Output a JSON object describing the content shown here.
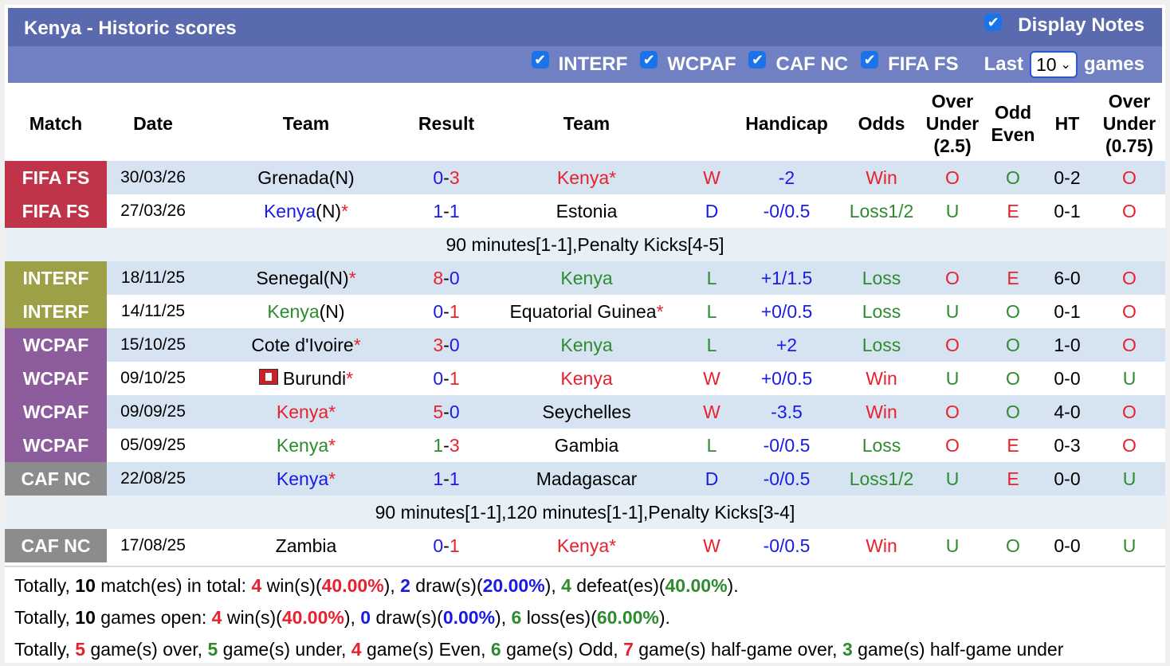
{
  "title": "Kenya - Historic scores",
  "display_notes": "Display Notes",
  "filters": [
    "INTERF",
    "WCPAF",
    "CAF NC",
    "FIFA FS"
  ],
  "last_label": "Last",
  "last_value": "10",
  "games_label": "games",
  "headers": {
    "match": "Match",
    "date": "Date",
    "team1": "Team",
    "result": "Result",
    "team2": "Team",
    "handicap": "Handicap",
    "odds": "Odds",
    "ou1": [
      "Over",
      "Under",
      "(2.5)"
    ],
    "oddeven": [
      "Odd",
      "Even"
    ],
    "ht": "HT",
    "ou2": [
      "Over",
      "Under",
      "(0.75)"
    ]
  },
  "rows": [
    {
      "match": "FIFA FS",
      "date": "30/03/26",
      "team1": "Grenada(N)",
      "result": "0-3",
      "team2": "Kenya",
      "wdl": "W",
      "handicap": "-2",
      "odds": "Win",
      "ou": "O",
      "oe": "O",
      "ht": "0-2",
      "ou2": "O"
    },
    {
      "match": "FIFA FS",
      "date": "27/03/26",
      "team1": "Kenya",
      "result": "1-1",
      "team2": "Estonia",
      "wdl": "D",
      "handicap": "-0/0.5",
      "odds": "Loss1/2",
      "ou": "U",
      "oe": "E",
      "ht": "0-1",
      "ou2": "O"
    },
    {
      "note": "90 minutes[1-1],Penalty Kicks[4-5]"
    },
    {
      "match": "INTERF",
      "date": "18/11/25",
      "team1": "Senegal(N)",
      "result": "8-0",
      "team2": "Kenya",
      "wdl": "L",
      "handicap": "+1/1.5",
      "odds": "Loss",
      "ou": "O",
      "oe": "E",
      "ht": "6-0",
      "ou2": "O"
    },
    {
      "match": "INTERF",
      "date": "14/11/25",
      "team1": "Kenya",
      "result": "0-1",
      "team2": "Equatorial Guinea",
      "wdl": "L",
      "handicap": "+0/0.5",
      "odds": "Loss",
      "ou": "U",
      "oe": "O",
      "ht": "0-1",
      "ou2": "O"
    },
    {
      "match": "WCPAF",
      "date": "15/10/25",
      "team1": "Cote d'Ivoire",
      "result": "3-0",
      "team2": "Kenya",
      "wdl": "L",
      "handicap": "+2",
      "odds": "Loss",
      "ou": "O",
      "oe": "O",
      "ht": "1-0",
      "ou2": "O"
    },
    {
      "match": "WCPAF",
      "date": "09/10/25",
      "team1": "Burundi",
      "result": "0-1",
      "team2": "Kenya",
      "wdl": "W",
      "handicap": "+0/0.5",
      "odds": "Win",
      "ou": "U",
      "oe": "O",
      "ht": "0-0",
      "ou2": "U"
    },
    {
      "match": "WCPAF",
      "date": "09/09/25",
      "team1": "Kenya",
      "result": "5-0",
      "team2": "Seychelles",
      "wdl": "W",
      "handicap": "-3.5",
      "odds": "Win",
      "ou": "O",
      "oe": "O",
      "ht": "4-0",
      "ou2": "O"
    },
    {
      "match": "WCPAF",
      "date": "05/09/25",
      "team1": "Kenya",
      "result": "1-3",
      "team2": "Gambia",
      "wdl": "L",
      "handicap": "-0/0.5",
      "odds": "Loss",
      "ou": "O",
      "oe": "E",
      "ht": "0-3",
      "ou2": "O"
    },
    {
      "match": "CAF NC",
      "date": "22/08/25",
      "team1": "Kenya",
      "result": "1-1",
      "team2": "Madagascar",
      "wdl": "D",
      "handicap": "-0/0.5",
      "odds": "Loss1/2",
      "ou": "U",
      "oe": "E",
      "ht": "0-0",
      "ou2": "U"
    },
    {
      "note": "90 minutes[1-1],120 minutes[1-1],Penalty Kicks[3-4]"
    },
    {
      "match": "CAF NC",
      "date": "17/08/25",
      "team1": "Zambia",
      "result": "0-1",
      "team2": "Kenya",
      "wdl": "W",
      "handicap": "-0/0.5",
      "odds": "Win",
      "ou": "U",
      "oe": "O",
      "ht": "0-0",
      "ou2": "U"
    }
  ],
  "totals": {
    "line1": {
      "t1": "Totally,",
      "n": "10",
      "t2": "match(es) in total:",
      "w": "4",
      "wt": "win(s)(",
      "wp": "40.00%",
      "wc": "),",
      "d": "2",
      "dt": "draw(s)(",
      "dp": "20.00%",
      "dc": "),",
      "l": "4",
      "lt": "defeat(es)(",
      "lp": "40.00%",
      "lc": ")."
    },
    "line2": {
      "t1": "Totally,",
      "n": "10",
      "t2": "games open:",
      "w": "4",
      "wt": "win(s)(",
      "wp": "40.00%",
      "wc": "),",
      "d": "0",
      "dt": "draw(s)(",
      "dp": "0.00%",
      "dc": "),",
      "l": "6",
      "lt": "loss(es)(",
      "lp": "60.00%",
      "lc": ")."
    },
    "line3": {
      "t1": "Totally,",
      "over": "5",
      "t2": "game(s) over,",
      "under": "5",
      "t3": "game(s) under,",
      "even": "4",
      "t4": "game(s) Even,",
      "odd": "6",
      "t5": "game(s) Odd,",
      "hgo": "7",
      "t6": "game(s) half-game over,",
      "hgu": "3",
      "t7": "game(s) half-game under"
    }
  },
  "colors": {
    "title_bar": "#5a6aae",
    "filter_bar": "#7080c2",
    "fifa": "#c0344a",
    "interf": "#9da047",
    "wcpaf": "#8d5c9c",
    "caf": "#8c8c8c",
    "red": "#e8212f",
    "blue": "#1a1ae6",
    "green": "#2e8b2e"
  }
}
